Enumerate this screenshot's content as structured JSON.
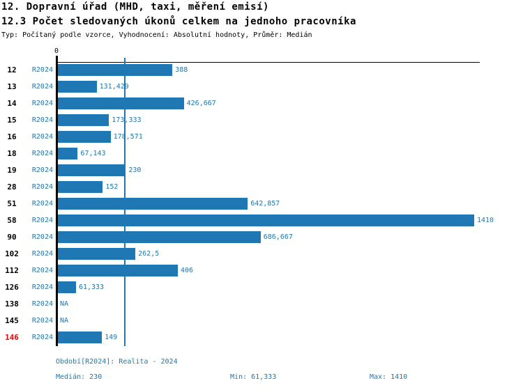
{
  "header": {
    "title": "12. Dopravní úřad (MHD, taxi, měření emisí)",
    "subtitle": "12.3 Počet sledovaných úkonů celkem na jednoho pracovníka",
    "meta": "Typ: Počítaný podle vzorce, Vyhodnocení: Absolutní hodnoty, Průměr: Medián"
  },
  "axis": {
    "zero_label": "0"
  },
  "chart_data": {
    "type": "bar",
    "orientation": "horizontal",
    "title": "12.3 Počet sledovaných úkonů celkem na jednoho pracovníka",
    "xlim": [
      0,
      1410
    ],
    "grid": false,
    "series_name": "R2024",
    "median_value": 230,
    "bar_color": "#1f77b4",
    "text_color": "#1f77b4",
    "highlight_color": "#ff0000",
    "categories": [
      "12",
      "13",
      "14",
      "15",
      "16",
      "18",
      "19",
      "28",
      "51",
      "58",
      "90",
      "102",
      "112",
      "126",
      "138",
      "145",
      "146"
    ],
    "values": [
      388,
      131.429,
      426.667,
      173.333,
      178.571,
      67.143,
      230,
      152,
      642.857,
      1410,
      686.667,
      262.5,
      406,
      61.333,
      null,
      null,
      149
    ],
    "value_labels": [
      "388",
      "131,429",
      "426,667",
      "173,333",
      "178,571",
      "67,143",
      "230",
      "152",
      "642,857",
      "1410",
      "686,667",
      "262,5",
      "406",
      "61,333",
      "NA",
      "NA",
      "149"
    ],
    "highlighted_categories": [
      "146"
    ]
  },
  "footer": {
    "period": "Období[R2024]: Realita - 2024",
    "median": "Medián: 230",
    "min": "Min: 61,333",
    "max": "Max: 1410"
  }
}
